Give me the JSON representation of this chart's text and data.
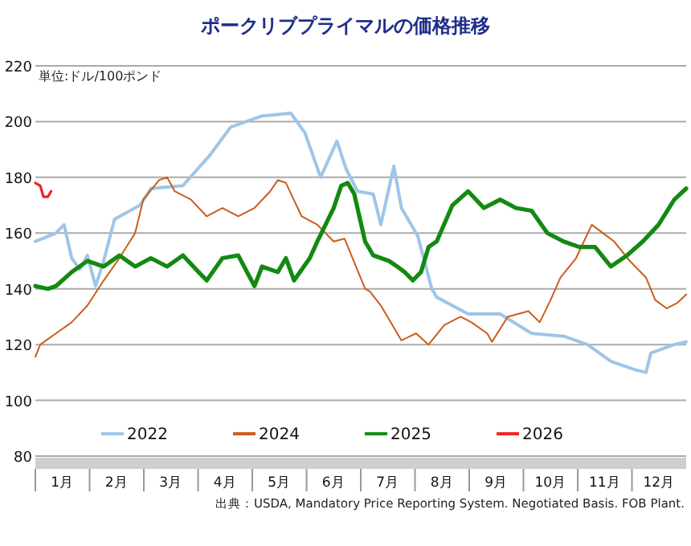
{
  "chart_data": {
    "type": "line",
    "title": "ポークリブプライマルの価格推移",
    "ylabel": "単位:ドル/100ポンド",
    "annotations": [
      "出典：USDA, Mandatory Price Reporting System. Negotiated Basis. FOB Plant."
    ],
    "xlim": [
      0,
      12
    ],
    "xticks": [
      {
        "value": 0.5,
        "label": "1月"
      },
      {
        "value": 1.5,
        "label": "2月"
      },
      {
        "value": 2.5,
        "label": "3月"
      },
      {
        "value": 3.5,
        "label": "4月"
      },
      {
        "value": 4.5,
        "label": "5月"
      },
      {
        "value": 5.5,
        "label": "6月"
      },
      {
        "value": 6.5,
        "label": "7月"
      },
      {
        "value": 7.5,
        "label": "8月"
      },
      {
        "value": 8.5,
        "label": "9月"
      },
      {
        "value": 9.5,
        "label": "10月"
      },
      {
        "value": 10.5,
        "label": "11月"
      },
      {
        "value": 11.5,
        "label": "12月"
      }
    ],
    "ylim": [
      80,
      220
    ],
    "yticks": [
      80,
      100,
      120,
      140,
      160,
      180,
      200,
      220
    ],
    "grid": "y",
    "legend": "bottom",
    "series": [
      {
        "name": "2022",
        "color": "#9fc5e8",
        "x": [
          0,
          0.38,
          0.53,
          0.67,
          0.82,
          0.96,
          1.11,
          1.26,
          1.46,
          1.93,
          2.13,
          2.72,
          3.22,
          3.6,
          4.18,
          4.71,
          4.97,
          5.26,
          5.56,
          5.73,
          5.94,
          6.23,
          6.37,
          6.61,
          6.75,
          7.05,
          7.31,
          7.4,
          7.98,
          8.57,
          9.15,
          9.74,
          10.18,
          10.61,
          11.05,
          11.26,
          11.35,
          11.78,
          12.0
        ],
        "values": [
          157,
          160,
          163,
          151,
          147,
          152,
          141,
          150,
          165,
          170,
          176,
          177,
          188,
          198,
          202,
          203,
          196,
          180,
          193,
          183,
          175,
          174,
          163,
          184,
          169,
          159,
          140,
          137,
          131,
          131,
          124,
          123,
          120,
          114,
          111,
          110,
          117,
          120,
          121
        ]
      },
      {
        "name": "2024",
        "color": "#cc5c1c",
        "x": [
          0,
          0.09,
          0.38,
          0.67,
          0.96,
          1.26,
          1.55,
          1.84,
          1.99,
          2.28,
          2.43,
          2.57,
          2.87,
          3.16,
          3.45,
          3.74,
          4.04,
          4.33,
          4.47,
          4.62,
          4.91,
          5.2,
          5.5,
          5.7,
          6.08,
          6.17,
          6.37,
          6.75,
          7.02,
          7.25,
          7.54,
          7.84,
          8.04,
          8.33,
          8.42,
          8.71,
          9.09,
          9.3,
          9.5,
          9.68,
          9.97,
          10.26,
          10.67,
          10.96,
          11.26,
          11.43,
          11.64,
          11.84,
          12.0
        ],
        "values": [
          115.6,
          120,
          124,
          128,
          134,
          143,
          151,
          160,
          172,
          179,
          180,
          175,
          172,
          166,
          169,
          166,
          169,
          175,
          179,
          178,
          166,
          163,
          157,
          158,
          140,
          139,
          134,
          121.5,
          124,
          120,
          127,
          130,
          128,
          124,
          121,
          130,
          132,
          128,
          136,
          144,
          151,
          163,
          157,
          150,
          144,
          136,
          133,
          135,
          138
        ]
      },
      {
        "name": "2025",
        "color": "#128a12",
        "x": [
          0,
          0.23,
          0.38,
          0.67,
          0.96,
          1.26,
          1.55,
          1.84,
          2.13,
          2.43,
          2.72,
          3.01,
          3.16,
          3.45,
          3.74,
          4.04,
          4.18,
          4.47,
          4.62,
          4.77,
          5.06,
          5.2,
          5.35,
          5.5,
          5.64,
          5.76,
          5.88,
          6.08,
          6.23,
          6.52,
          6.67,
          6.81,
          6.96,
          7.11,
          7.25,
          7.4,
          7.69,
          7.98,
          8.27,
          8.57,
          8.86,
          9.15,
          9.44,
          9.74,
          10.03,
          10.32,
          10.61,
          10.91,
          11.2,
          11.49,
          11.78,
          12.0
        ],
        "values": [
          141,
          140,
          141,
          146,
          150,
          148,
          152,
          148,
          151,
          148,
          152,
          146,
          143,
          151,
          152,
          141,
          148,
          146,
          151,
          143,
          151,
          157,
          163,
          169,
          177,
          178,
          174,
          157,
          152,
          150,
          148,
          146,
          143,
          146,
          155,
          157,
          170,
          175,
          169,
          172,
          169,
          168,
          160,
          157,
          155,
          155,
          148,
          152,
          157,
          163,
          172,
          176
        ]
      },
      {
        "name": "2026",
        "color": "#ee2222",
        "x": [
          0,
          0.09,
          0.15,
          0.23,
          0.29
        ],
        "values": [
          178,
          177,
          173,
          173,
          175
        ]
      }
    ]
  }
}
